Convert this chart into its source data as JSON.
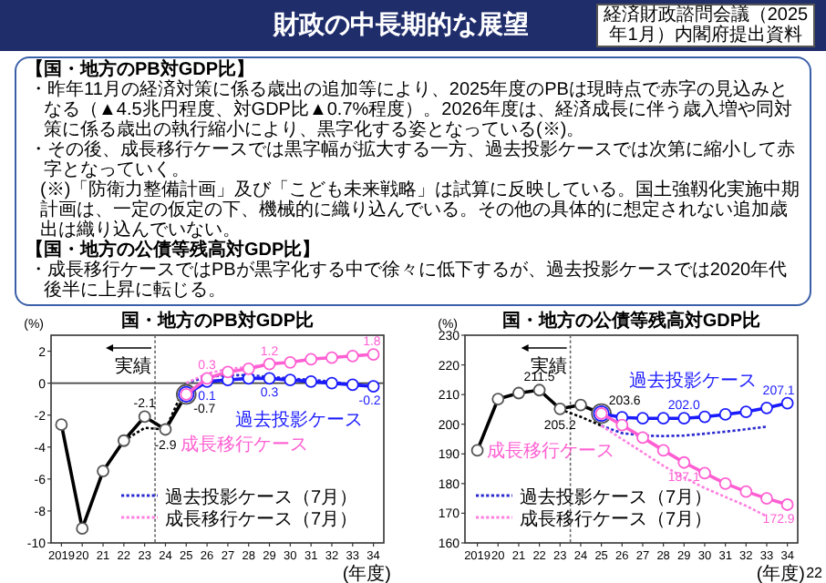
{
  "chart_data": [
    {
      "type": "other",
      "title": "財政の中長期的な展望",
      "subtitle": "経済財政諮問会議（2025年1月）内閣府提出資料",
      "annotations": [
        "【国・地方のPB対GDP比】",
        "・昨年11月の経済対策に係る歳出の追加等により、2025年度のPBは現時点で赤字の見込みとなる（▲4.5兆円程度、対GDP比▲0.7%程度）。2026年度は、経済成長に伴う歳入増や同対策に係る歳出の執行縮小により、黒字化する姿となっている(※)。",
        "・その後、成長移行ケースでは黒字幅が拡大する一方、過去投影ケースでは次第に縮小して赤字となっていく。",
        "(※)「防衛力整備計画」及び「こども未来戦略」は試算に反映している。国土強靱化実施中期計画は、一定の仮定の下、機械的に織り込んでいる。その他の具体的に想定されない追加歳出は織り込んでいない。",
        "【国・地方の公債等残高対GDP比】",
        "・成長移行ケースではPBが黒字化する中で徐々に低下するが、過去投影ケースでは2020年代後半に上昇に転じる。",
        "22"
      ]
    },
    {
      "type": "line",
      "title": "国・地方のPB対GDP比",
      "ylabel": "(%)",
      "xlabel": "(年度)",
      "xlim": [
        2018.5,
        2034.5
      ],
      "ylim": [
        -10,
        3
      ],
      "yticks": [
        -10,
        -8,
        -6,
        -4,
        -2,
        0,
        2
      ],
      "xticks": [
        {
          "value": 2019,
          "label": "2019"
        },
        {
          "value": 2020,
          "label": "20"
        },
        {
          "value": 2021,
          "label": "21"
        },
        {
          "value": 2022,
          "label": "22"
        },
        {
          "value": 2023,
          "label": "23"
        },
        {
          "value": 2024,
          "label": "24"
        },
        {
          "value": 2025,
          "label": "25"
        },
        {
          "value": 2026,
          "label": "26"
        },
        {
          "value": 2027,
          "label": "27"
        },
        {
          "value": 2028,
          "label": "28"
        },
        {
          "value": 2029,
          "label": "29"
        },
        {
          "value": 2030,
          "label": "30"
        },
        {
          "value": 2031,
          "label": "31"
        },
        {
          "value": 2032,
          "label": "32"
        },
        {
          "value": 2033,
          "label": "33"
        },
        {
          "value": 2034,
          "label": "34"
        }
      ],
      "legend": "bottom right",
      "grid": false,
      "ref_lines": [
        {
          "axis": "x",
          "value": 2023.5,
          "label": "実績",
          "line_style": "dotted",
          "color": "#666666"
        },
        {
          "axis": "y",
          "value": 0,
          "line_style": "solid",
          "color": "#444444"
        }
      ],
      "series": [
        {
          "color": "#000000",
          "line_style": "dotted",
          "x": [
            2022,
            2023,
            2024,
            2025
          ],
          "values": [
            -3.6,
            -2.8,
            -2.9,
            0.0
          ]
        },
        {
          "name": "過去投影ケース（7月）",
          "color": "#2a2ad0",
          "marker": "none",
          "line_style": "dotted",
          "x": [
            2025,
            2026,
            2027,
            2028,
            2029,
            2030,
            2031,
            2032,
            2033,
            2034
          ],
          "values": [
            0.0,
            0.4,
            0.5,
            0.5,
            0.4,
            0.3,
            0.2,
            0.1,
            -0.1,
            -0.2
          ]
        },
        {
          "name": "成長移行ケース（7月）",
          "color": "#ff80e0",
          "marker": "none",
          "line_style": "dotted",
          "x": [
            2025,
            2026,
            2027,
            2028,
            2029,
            2030,
            2031,
            2032,
            2033,
            2034
          ],
          "values": [
            0.0,
            0.6,
            0.9,
            1.0,
            1.2,
            1.3,
            1.5,
            1.6,
            1.7,
            1.8
          ]
        },
        {
          "color": "#000000",
          "marker": "circle",
          "line_style": "solid",
          "x": [
            2019,
            2020,
            2021,
            2022,
            2023,
            2024,
            2025
          ],
          "values": [
            -2.6,
            -9.1,
            -5.5,
            -3.6,
            -2.1,
            -2.9,
            -0.7
          ],
          "value_labels": [
            null,
            null,
            null,
            null,
            "-2.1",
            "-2.9",
            "-0.7"
          ]
        },
        {
          "name": "過去投影ケース",
          "color": "#1a1aff",
          "marker": "circle",
          "line_style": "solid",
          "x": [
            2025,
            2026,
            2027,
            2028,
            2029,
            2030,
            2031,
            2032,
            2033,
            2034
          ],
          "values": [
            -0.7,
            0.1,
            0.2,
            0.3,
            0.3,
            0.2,
            0.1,
            0.0,
            -0.1,
            -0.2
          ],
          "value_labels": [
            null,
            "0.1",
            null,
            null,
            "0.3",
            null,
            null,
            null,
            null,
            "-0.2"
          ]
        },
        {
          "name": "成長移行ケース",
          "color": "#ff5fd2",
          "marker": "circle",
          "line_style": "solid",
          "x": [
            2025,
            2026,
            2027,
            2028,
            2029,
            2030,
            2031,
            2032,
            2033,
            2034
          ],
          "values": [
            -0.7,
            0.3,
            0.7,
            0.9,
            1.2,
            1.3,
            1.5,
            1.6,
            1.7,
            1.8
          ],
          "value_labels": [
            null,
            "0.3",
            null,
            null,
            "1.2",
            null,
            null,
            null,
            null,
            "1.8"
          ]
        }
      ]
    },
    {
      "type": "line",
      "title": "国・地方の公債等残高対GDP比",
      "ylabel": "(%)",
      "xlabel": "(年度)",
      "xlim": [
        2018.4,
        2034.5
      ],
      "ylim": [
        160,
        230
      ],
      "yticks": [
        160,
        170,
        180,
        190,
        200,
        210,
        220,
        230
      ],
      "xticks": [
        {
          "value": 2019,
          "label": "2019"
        },
        {
          "value": 2020,
          "label": "20"
        },
        {
          "value": 2021,
          "label": "21"
        },
        {
          "value": 2022,
          "label": "22"
        },
        {
          "value": 2023,
          "label": "23"
        },
        {
          "value": 2024,
          "label": "24"
        },
        {
          "value": 2025,
          "label": "25"
        },
        {
          "value": 2026,
          "label": "26"
        },
        {
          "value": 2027,
          "label": "27"
        },
        {
          "value": 2028,
          "label": "28"
        },
        {
          "value": 2029,
          "label": "29"
        },
        {
          "value": 2030,
          "label": "30"
        },
        {
          "value": 2031,
          "label": "31"
        },
        {
          "value": 2032,
          "label": "32"
        },
        {
          "value": 2033,
          "label": "33"
        },
        {
          "value": 2034,
          "label": "34"
        }
      ],
      "legend": "bottom left",
      "grid": false,
      "ref_lines": [
        {
          "axis": "x",
          "value": 2023.5,
          "label": "実績",
          "line_style": "dotted",
          "color": "#666666"
        }
      ],
      "series": [
        {
          "color": "#000000",
          "line_style": "dotted",
          "x": [
            2023,
            2024,
            2025
          ],
          "values": [
            205.0,
            202.5,
            199.5
          ]
        },
        {
          "name": "過去投影ケース（7月）",
          "color": "#2a2ad0",
          "marker": "none",
          "line_style": "dotted",
          "x": [
            2025,
            2026,
            2027,
            2028,
            2029,
            2030,
            2031,
            2032,
            2033
          ],
          "values": [
            199.5,
            197.0,
            196.2,
            196.0,
            196.2,
            196.8,
            197.5,
            198.3,
            199.2
          ]
        },
        {
          "name": "成長移行ケース（7月）",
          "color": "#ff80e0",
          "marker": "none",
          "line_style": "dotted",
          "x": [
            2025,
            2026,
            2027,
            2028,
            2029,
            2030,
            2031,
            2032,
            2033
          ],
          "values": [
            199.5,
            195.0,
            190.5,
            186.0,
            182.0,
            178.5,
            175.5,
            172.5,
            169.0
          ]
        },
        {
          "color": "#000000",
          "marker": "circle",
          "line_style": "solid",
          "x": [
            2019,
            2020,
            2021,
            2022,
            2023,
            2024,
            2025
          ],
          "values": [
            191.2,
            208.5,
            210.5,
            211.5,
            205.2,
            206.5,
            203.6
          ],
          "value_labels": [
            null,
            null,
            null,
            "211.5",
            "205.2",
            null,
            "203.6"
          ]
        },
        {
          "name": "過去投影ケース",
          "color": "#1a1aff",
          "marker": "circle",
          "line_style": "solid",
          "x": [
            2025,
            2026,
            2027,
            2028,
            2029,
            2030,
            2031,
            2032,
            2033,
            2034
          ],
          "values": [
            203.6,
            202.3,
            202.0,
            202.0,
            202.0,
            202.5,
            203.3,
            204.2,
            205.5,
            207.1
          ],
          "value_labels": [
            null,
            null,
            null,
            null,
            "202.0",
            null,
            null,
            null,
            null,
            "207.1"
          ]
        },
        {
          "name": "成長移行ケース",
          "color": "#ff5fd2",
          "marker": "circle",
          "line_style": "solid",
          "x": [
            2025,
            2026,
            2027,
            2028,
            2029,
            2030,
            2031,
            2032,
            2033,
            2034
          ],
          "values": [
            203.6,
            199.7,
            195.5,
            191.2,
            187.1,
            183.5,
            180.0,
            177.3,
            175.0,
            172.9
          ],
          "value_labels": [
            null,
            null,
            null,
            null,
            "187.1",
            null,
            null,
            null,
            null,
            "172.9"
          ]
        }
      ]
    }
  ]
}
